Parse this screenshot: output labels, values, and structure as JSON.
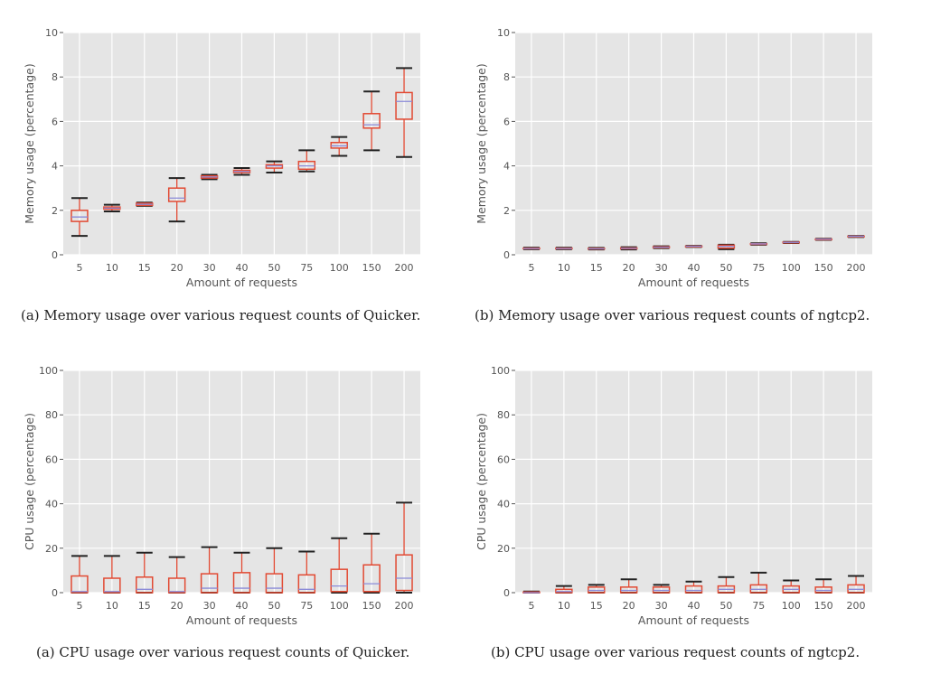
{
  "chart_data": [
    {
      "type": "box",
      "caption": "(a) Memory usage over various request counts of Quicker.",
      "xlabel": "Amount of requests",
      "ylabel": "Memory usage (percentage)",
      "ylim": [
        0,
        10
      ],
      "yticks": [
        0,
        2,
        4,
        6,
        8,
        10
      ],
      "grid": true,
      "categories": [
        "5",
        "10",
        "15",
        "20",
        "30",
        "40",
        "50",
        "75",
        "100",
        "150",
        "200"
      ],
      "boxes": [
        {
          "min": 0.85,
          "q1": 1.5,
          "median": 1.7,
          "q3": 2.0,
          "max": 2.55
        },
        {
          "min": 1.95,
          "q1": 2.05,
          "median": 2.1,
          "q3": 2.15,
          "max": 2.25
        },
        {
          "min": 2.2,
          "q1": 2.22,
          "median": 2.27,
          "q3": 2.32,
          "max": 2.35
        },
        {
          "min": 1.5,
          "q1": 2.4,
          "median": 2.55,
          "q3": 3.0,
          "max": 3.45
        },
        {
          "min": 3.4,
          "q1": 3.45,
          "median": 3.5,
          "q3": 3.55,
          "max": 3.6
        },
        {
          "min": 3.6,
          "q1": 3.7,
          "median": 3.75,
          "q3": 3.8,
          "max": 3.9
        },
        {
          "min": 3.7,
          "q1": 3.9,
          "median": 4.0,
          "q3": 4.05,
          "max": 4.2
        },
        {
          "min": 3.75,
          "q1": 3.85,
          "median": 4.0,
          "q3": 4.2,
          "max": 4.7
        },
        {
          "min": 4.45,
          "q1": 4.8,
          "median": 4.9,
          "q3": 5.05,
          "max": 5.3
        },
        {
          "min": 4.7,
          "q1": 5.7,
          "median": 5.85,
          "q3": 6.35,
          "max": 7.35
        },
        {
          "min": 4.4,
          "q1": 6.1,
          "median": 6.9,
          "q3": 7.3,
          "max": 8.4
        }
      ]
    },
    {
      "type": "box",
      "caption": "(b) Memory usage over various request counts of ngtcp2.",
      "xlabel": "Amount of requests",
      "ylabel": "Memory usage (percentage)",
      "ylim": [
        0,
        10
      ],
      "yticks": [
        0,
        2,
        4,
        6,
        8,
        10
      ],
      "grid": true,
      "categories": [
        "5",
        "10",
        "15",
        "20",
        "30",
        "40",
        "50",
        "75",
        "100",
        "150",
        "200"
      ],
      "boxes": [
        {
          "min": 0.25,
          "q1": 0.27,
          "median": 0.28,
          "q3": 0.3,
          "max": 0.32
        },
        {
          "min": 0.25,
          "q1": 0.27,
          "median": 0.28,
          "q3": 0.3,
          "max": 0.32
        },
        {
          "min": 0.24,
          "q1": 0.26,
          "median": 0.27,
          "q3": 0.29,
          "max": 0.31
        },
        {
          "min": 0.24,
          "q1": 0.27,
          "median": 0.29,
          "q3": 0.31,
          "max": 0.34
        },
        {
          "min": 0.3,
          "q1": 0.32,
          "median": 0.34,
          "q3": 0.36,
          "max": 0.38
        },
        {
          "min": 0.35,
          "q1": 0.37,
          "median": 0.38,
          "q3": 0.39,
          "max": 0.4
        },
        {
          "min": 0.25,
          "q1": 0.3,
          "median": 0.38,
          "q3": 0.43,
          "max": 0.45
        },
        {
          "min": 0.45,
          "q1": 0.47,
          "median": 0.49,
          "q3": 0.5,
          "max": 0.52
        },
        {
          "min": 0.53,
          "q1": 0.55,
          "median": 0.56,
          "q3": 0.57,
          "max": 0.58
        },
        {
          "min": 0.67,
          "q1": 0.69,
          "median": 0.7,
          "q3": 0.71,
          "max": 0.72
        },
        {
          "min": 0.8,
          "q1": 0.82,
          "median": 0.83,
          "q3": 0.84,
          "max": 0.85
        }
      ]
    },
    {
      "type": "box",
      "caption": "(a) CPU usage over various request counts of Quicker.",
      "xlabel": "Amount of requests",
      "ylabel": "CPU usage (percentage)",
      "ylim": [
        0,
        100
      ],
      "yticks": [
        0,
        20,
        40,
        60,
        80,
        100
      ],
      "grid": true,
      "categories": [
        "5",
        "10",
        "15",
        "20",
        "30",
        "40",
        "50",
        "75",
        "100",
        "150",
        "200"
      ],
      "boxes": [
        {
          "min": 0,
          "q1": 0,
          "median": 0.5,
          "q3": 7.5,
          "max": 16.5
        },
        {
          "min": 0,
          "q1": 0,
          "median": 0.5,
          "q3": 6.5,
          "max": 16.5
        },
        {
          "min": 0,
          "q1": 0,
          "median": 1.5,
          "q3": 7.0,
          "max": 18.0
        },
        {
          "min": 0,
          "q1": 0,
          "median": 0.5,
          "q3": 6.5,
          "max": 16.0
        },
        {
          "min": 0,
          "q1": 0,
          "median": 2.0,
          "q3": 8.5,
          "max": 20.5
        },
        {
          "min": 0,
          "q1": 0,
          "median": 2.0,
          "q3": 9.0,
          "max": 18.0
        },
        {
          "min": 0,
          "q1": 0,
          "median": 2.0,
          "q3": 8.5,
          "max": 20.0
        },
        {
          "min": 0,
          "q1": 0,
          "median": 1.5,
          "q3": 8.0,
          "max": 18.5
        },
        {
          "min": 0,
          "q1": 0.5,
          "median": 3.0,
          "q3": 10.5,
          "max": 24.5
        },
        {
          "min": 0,
          "q1": 0.5,
          "median": 4.0,
          "q3": 12.5,
          "max": 26.5
        },
        {
          "min": 0,
          "q1": 1.0,
          "median": 6.5,
          "q3": 17.0,
          "max": 40.5
        }
      ]
    },
    {
      "type": "box",
      "caption": "(b) CPU usage over various request counts of ngtcp2.",
      "xlabel": "Amount of requests",
      "ylabel": "CPU usage (percentage)",
      "ylim": [
        0,
        100
      ],
      "yticks": [
        0,
        20,
        40,
        60,
        80,
        100
      ],
      "grid": true,
      "categories": [
        "5",
        "10",
        "15",
        "20",
        "30",
        "40",
        "50",
        "75",
        "100",
        "150",
        "200"
      ],
      "boxes": [
        {
          "min": 0,
          "q1": 0,
          "median": 0,
          "q3": 0.3,
          "max": 0.5
        },
        {
          "min": 0,
          "q1": 0,
          "median": 0.5,
          "q3": 1.5,
          "max": 3.0
        },
        {
          "min": 0,
          "q1": 0,
          "median": 1.0,
          "q3": 2.5,
          "max": 3.5
        },
        {
          "min": 0,
          "q1": 0,
          "median": 1.0,
          "q3": 2.5,
          "max": 6.0
        },
        {
          "min": 0,
          "q1": 0,
          "median": 1.0,
          "q3": 2.5,
          "max": 3.5
        },
        {
          "min": 0,
          "q1": 0,
          "median": 1.0,
          "q3": 3.0,
          "max": 5.0
        },
        {
          "min": 0,
          "q1": 0,
          "median": 1.5,
          "q3": 3.0,
          "max": 7.0
        },
        {
          "min": 0,
          "q1": 0,
          "median": 1.5,
          "q3": 3.5,
          "max": 9.0
        },
        {
          "min": 0,
          "q1": 0,
          "median": 1.5,
          "q3": 3.0,
          "max": 5.5
        },
        {
          "min": 0,
          "q1": 0,
          "median": 1.0,
          "q3": 2.5,
          "max": 6.0
        },
        {
          "min": 0,
          "q1": 0,
          "median": 1.5,
          "q3": 3.5,
          "max": 7.5
        }
      ]
    }
  ]
}
